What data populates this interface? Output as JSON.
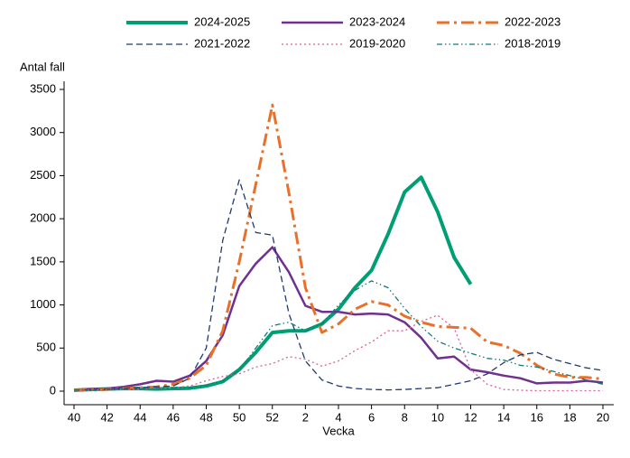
{
  "chart_data": {
    "type": "line",
    "y_label": "Antal fall",
    "x_label": "Vecka",
    "categories": [
      "40",
      null,
      "42",
      null,
      "44",
      null,
      "46",
      null,
      "48",
      null,
      "50",
      null,
      "52",
      null,
      "2",
      null,
      "4",
      null,
      "6",
      null,
      "8",
      null,
      "10",
      null,
      "12",
      null,
      "14",
      null,
      "16",
      null,
      "18",
      null,
      "20"
    ],
    "ylim": [
      0,
      3500
    ],
    "yticks": [
      0,
      500,
      1000,
      1500,
      2000,
      2500,
      3000,
      3500
    ],
    "series": [
      {
        "name": "2024-2025",
        "color": "#009e73",
        "width": 4,
        "dash": "none",
        "values": [
          10,
          20,
          25,
          30,
          30,
          25,
          30,
          35,
          60,
          110,
          250,
          450,
          680,
          700,
          700,
          780,
          950,
          1200,
          1400,
          1820,
          2310,
          2480,
          2080,
          1550,
          1240,
          null,
          null,
          null,
          null,
          null,
          null,
          null,
          null
        ]
      },
      {
        "name": "2023-2024",
        "color": "#70308f",
        "width": 2.5,
        "dash": "none",
        "values": [
          10,
          20,
          30,
          50,
          80,
          120,
          110,
          180,
          350,
          650,
          1220,
          1480,
          1670,
          1380,
          990,
          920,
          920,
          890,
          900,
          890,
          800,
          620,
          380,
          400,
          250,
          220,
          180,
          150,
          90,
          100,
          100,
          120,
          100
        ]
      },
      {
        "name": "2022-2023",
        "color": "#e8702a",
        "width": 3,
        "dash": "14 5 3 5",
        "values": [
          10,
          15,
          20,
          30,
          40,
          50,
          80,
          150,
          300,
          700,
          1500,
          2400,
          3320,
          2300,
          1200,
          680,
          780,
          950,
          1040,
          1000,
          870,
          800,
          750,
          740,
          730,
          570,
          530,
          440,
          300,
          200,
          160,
          160,
          140
        ]
      },
      {
        "name": "2021-2022",
        "color": "#1f3a6e",
        "width": 1.3,
        "dash": "7 4",
        "values": [
          10,
          15,
          20,
          30,
          40,
          50,
          60,
          150,
          500,
          1750,
          2450,
          1840,
          1810,
          900,
          350,
          130,
          60,
          30,
          20,
          15,
          20,
          30,
          40,
          80,
          120,
          200,
          330,
          420,
          450,
          370,
          320,
          270,
          240
        ]
      },
      {
        "name": "2019-2020",
        "color": "#d9609a",
        "width": 1.3,
        "dash": "2 3",
        "values": [
          10,
          12,
          15,
          20,
          25,
          30,
          40,
          60,
          120,
          170,
          200,
          280,
          320,
          400,
          370,
          290,
          350,
          470,
          570,
          700,
          700,
          810,
          880,
          730,
          250,
          80,
          20,
          10,
          5,
          5,
          5,
          5,
          5
        ]
      },
      {
        "name": "2018-2019",
        "color": "#127a7a",
        "width": 1.3,
        "dash": "6 3 1.5 3 1.5 3",
        "values": [
          10,
          12,
          15,
          20,
          25,
          30,
          35,
          40,
          70,
          120,
          240,
          500,
          760,
          800,
          700,
          780,
          1000,
          1170,
          1280,
          1200,
          960,
          750,
          580,
          500,
          440,
          380,
          360,
          300,
          280,
          230,
          180,
          130,
          80
        ]
      }
    ]
  }
}
